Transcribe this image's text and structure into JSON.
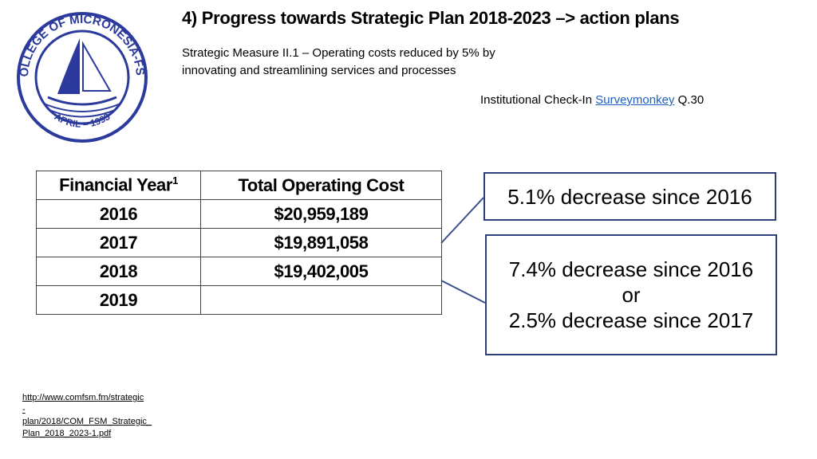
{
  "logo": {
    "ring_top": "COLLEGE OF MICRONESIA-FSM",
    "ring_bottom": "APRIL – 1993"
  },
  "header": {
    "title": "4) Progress towards Strategic Plan 2018-2023 –> action plans",
    "subtitle_lines": [
      "Strategic Measure II.1 – Operating costs reduced by 5% by",
      "innovating and streamlining services and processes"
    ],
    "source_prefix": "Institutional Check-In",
    "source_link": "Surveymonkey",
    "source_suffix": "Q.30"
  },
  "table": {
    "headers": [
      "Financial Year",
      "Total Operating Cost"
    ],
    "header_footnote": "1",
    "rows": [
      [
        "2016",
        "$20,959,189"
      ],
      [
        "2017",
        "$19,891,058"
      ],
      [
        "2018",
        "$19,402,005"
      ],
      [
        "2019"
      ]
    ]
  },
  "callouts": [
    {
      "lines": [
        "5.1% decrease since 2016"
      ]
    },
    {
      "lines": [
        "7.4% decrease since 2016",
        "or",
        "2.5% decrease since 2017"
      ]
    }
  ],
  "footer": {
    "url_lines": [
      "http://www.comfsm.fm/strategic",
      "-",
      "plan/2018/COM_FSM_Strategic_",
      "Plan_2018_2023-1.pdf"
    ]
  }
}
